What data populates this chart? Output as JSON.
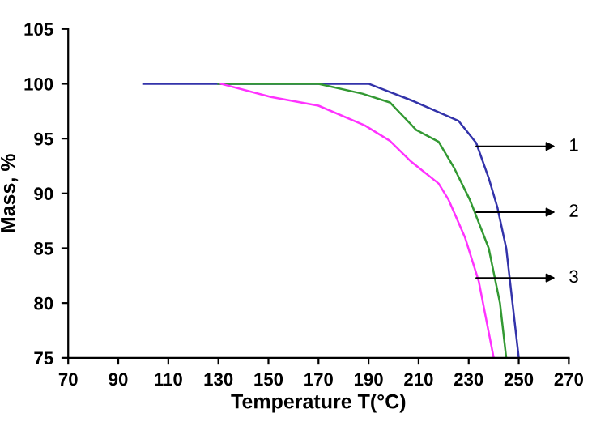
{
  "chart_data": {
    "type": "line",
    "xlabel": "Temperature T(°C)",
    "ylabel": "Mass, %",
    "xlim": [
      70,
      270
    ],
    "xticks": [
      70,
      90,
      110,
      130,
      150,
      170,
      190,
      210,
      230,
      250,
      270
    ],
    "ylim": [
      75,
      105
    ],
    "yticks": [
      75,
      80,
      85,
      90,
      95,
      100,
      105
    ],
    "grid": false,
    "legend": false,
    "series": [
      {
        "color": "#3333aa",
        "x": [
          100,
          190,
          207,
          226,
          233,
          238,
          241.5,
          245,
          250
        ],
        "values": [
          100,
          100,
          98.5,
          96.6,
          94.6,
          91.4,
          88.7,
          85,
          75
        ]
      },
      {
        "color": "#339933",
        "x": [
          130,
          170,
          187.5,
          198.5,
          209,
          218,
          224,
          230.5,
          238,
          242.5,
          245
        ],
        "values": [
          100,
          100,
          99.1,
          98.3,
          95.8,
          94.7,
          92.4,
          89.4,
          85,
          80,
          75
        ]
      },
      {
        "color": "#ff33ff",
        "x": [
          131,
          151,
          170,
          188.5,
          198.5,
          207,
          218,
          222,
          228.5,
          234,
          240
        ],
        "values": [
          100,
          98.8,
          98,
          96.2,
          94.8,
          92.9,
          90.9,
          89.4,
          86,
          82,
          75
        ]
      }
    ],
    "annotations": [
      "1",
      "2",
      "3"
    ]
  }
}
